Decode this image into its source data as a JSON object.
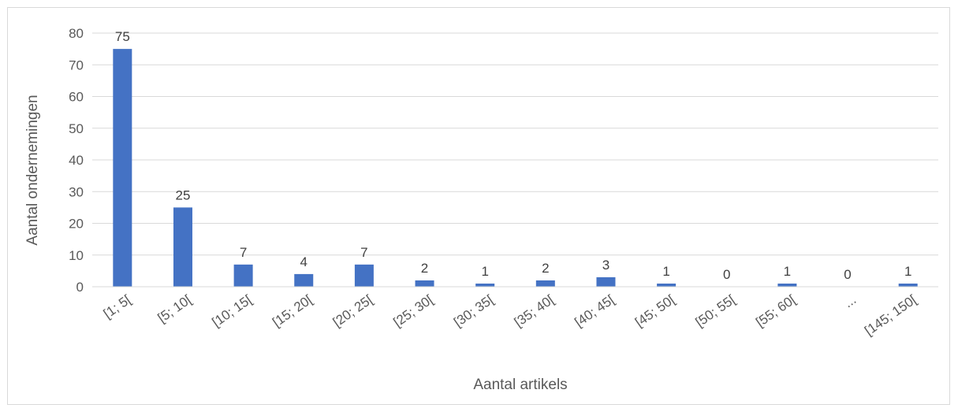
{
  "chart_data": {
    "type": "bar",
    "categories": [
      "[1; 5[",
      "[5; 10[",
      "[10; 15[",
      "[15; 20[",
      "[20; 25[",
      "[25; 30[",
      "[30; 35[",
      "[35; 40[",
      "[40; 45[",
      "[45; 50[",
      "[50; 55[",
      "[55; 60[",
      "...",
      "[145; 150["
    ],
    "values": [
      75,
      25,
      7,
      4,
      7,
      2,
      1,
      2,
      3,
      1,
      0,
      1,
      0,
      1
    ],
    "title": "",
    "xlabel": "Aantal artikels",
    "ylabel": "Aantal ondernemingen",
    "ylim": [
      0,
      80
    ],
    "yticks": [
      0,
      10,
      20,
      30,
      40,
      50,
      60,
      70,
      80
    ],
    "grid": true,
    "legend": "none",
    "bar_color": "#4472C4",
    "grid_color": "#d9d9d9",
    "data_labels": true
  }
}
